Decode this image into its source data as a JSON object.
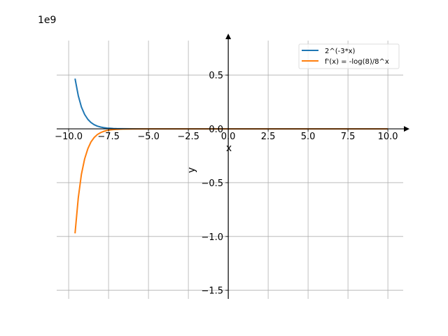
{
  "chart_data": {
    "type": "line",
    "title": "",
    "xlabel": "x",
    "ylabel": "y",
    "y_offset_text": "1e9",
    "xlim": [
      -10.75,
      10.96
    ],
    "ylim": [
      -1.58,
      0.82
    ],
    "y_scale_factor": 1000000000.0,
    "grid": true,
    "spines": "centered-at-origin-with-arrows",
    "legend_position": "top-right",
    "x_ticks": [
      -10.0,
      -7.5,
      -5.0,
      -2.5,
      0.0,
      2.5,
      5.0,
      7.5,
      10.0
    ],
    "x_tick_labels": [
      "−10.0",
      "−7.5",
      "−5.0",
      "−2.5",
      "0.0",
      "2.5",
      "5.0",
      "7.5",
      "10.0"
    ],
    "y_ticks": [
      0.5,
      0.0,
      -0.5,
      -1.0,
      -1.5
    ],
    "y_tick_labels": [
      "0.5",
      "0.0",
      "−0.5",
      "−1.0",
      "−1.5"
    ],
    "x": [
      -9.6,
      -9.4,
      -9.2,
      -9.0,
      -8.8,
      -8.6,
      -8.4,
      -8.2,
      -8.0,
      -7.8,
      -7.6,
      -7.4,
      -7.2,
      -7.0,
      -6.6,
      -6.0,
      -5.0,
      0.0,
      5.0,
      10.0
    ],
    "series": [
      {
        "name": "2^(-3*x)",
        "color": "#1f77b4",
        "values": [
          0.467,
          0.309,
          0.203,
          0.134,
          0.0885,
          0.0584,
          0.0385,
          0.0254,
          0.0168,
          0.0111,
          0.0073,
          0.0048,
          0.0032,
          0.0021,
          0.0009,
          0.0003,
          3e-05,
          0,
          0,
          0
        ]
      },
      {
        "name": "f'(x) = -log(8)/8^x",
        "color": "#ff7f0e",
        "values": [
          -0.971,
          -0.643,
          -0.422,
          -0.279,
          -0.184,
          -0.121,
          -0.08,
          -0.053,
          -0.035,
          -0.023,
          -0.015,
          -0.01,
          -0.0067,
          -0.0044,
          -0.0019,
          -0.0005,
          -7e-05,
          0,
          0,
          0
        ]
      }
    ]
  }
}
